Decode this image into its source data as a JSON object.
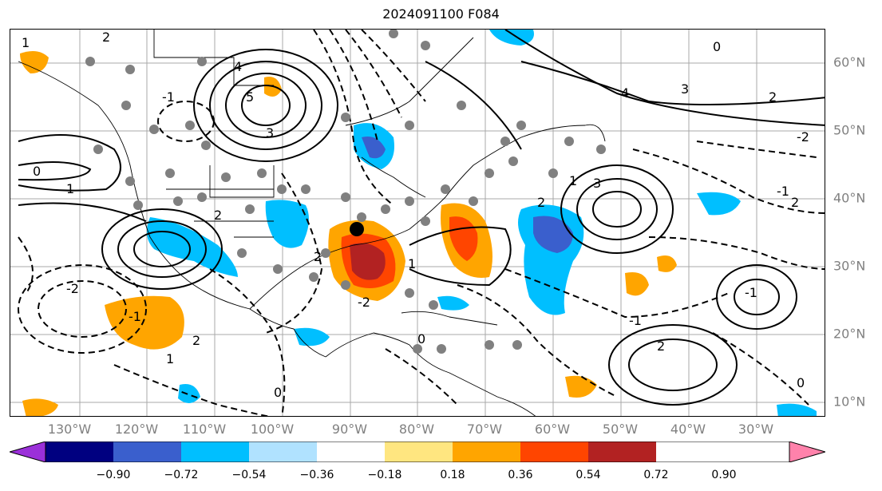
{
  "title": "2024091100 F084",
  "lon_labels": [
    "130°W",
    "120°W",
    "110°W",
    "100°W",
    "90°W",
    "80°W",
    "70°W",
    "60°W",
    "50°W",
    "40°W",
    "30°W"
  ],
  "lat_labels": [
    "60°N",
    "50°N",
    "40°N",
    "30°N",
    "20°N",
    "10°N"
  ],
  "colorbar": {
    "labels": [
      "−0.90",
      "−0.72",
      "−0.54",
      "−0.36",
      "−0.18",
      "0.18",
      "0.36",
      "0.54",
      "0.72",
      "0.90"
    ],
    "colors": [
      "#9b30d9",
      "#000080",
      "#3a5fcd",
      "#00bfff",
      "#b0e2ff",
      "#ffffff",
      "#ffe680",
      "#ffa500",
      "#ff4500",
      "#b22222",
      "#ff82ab"
    ]
  },
  "contour_labels": [
    "1",
    "2",
    "0",
    "-1",
    "-2",
    "4",
    "5",
    "3",
    "2",
    "0",
    "1",
    "-1",
    "2",
    "3",
    "4",
    "-2",
    "-1",
    "1",
    "2",
    "3",
    "2",
    "-2",
    "2",
    "0",
    "1",
    "-1",
    "2",
    "0",
    "-1",
    "1",
    "2",
    "0"
  ],
  "marker": {
    "name": "storm-center",
    "lon": -88,
    "lat": 34
  }
}
